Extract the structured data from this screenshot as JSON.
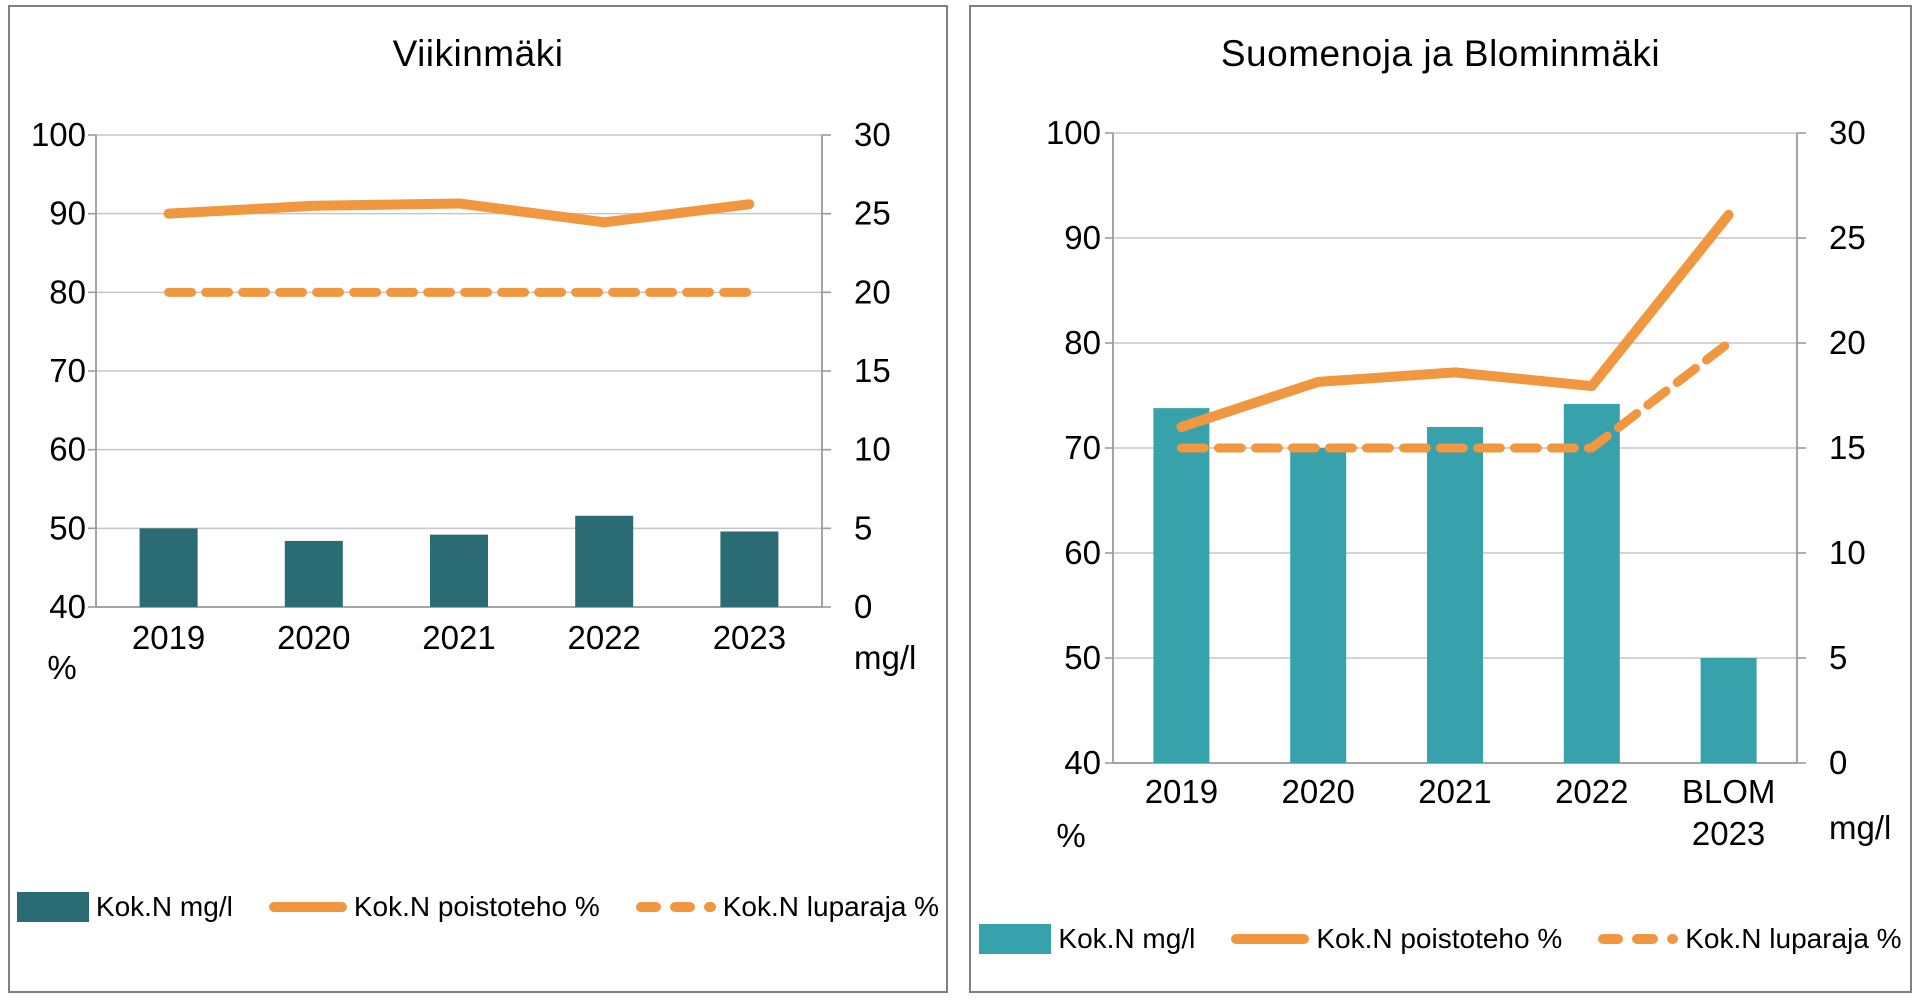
{
  "page": {
    "background": "#ffffff",
    "panel_border_color": "#7f7f7f"
  },
  "colors": {
    "orange": "#F0973F",
    "teal_dark": "#2A6B74",
    "teal_light": "#38A2AC",
    "gridline": "#C6C6C6",
    "axis_line": "#9B9B9B",
    "text": "#000000"
  },
  "chart_data": [
    {
      "type": "combo",
      "title": "Viikinmäki",
      "categories": [
        "2019",
        "2020",
        "2021",
        "2022",
        "2023"
      ],
      "left_axis": {
        "label": "%",
        "min": 40,
        "max": 100,
        "ticks": [
          100,
          90,
          80,
          70,
          60,
          50,
          40
        ]
      },
      "right_axis": {
        "label": "mg/l",
        "min": 0,
        "max": 30,
        "ticks": [
          30,
          25,
          20,
          15,
          10,
          5,
          0
        ]
      },
      "grid": true,
      "legend_position": "bottom",
      "series": [
        {
          "name": "Kok.N mg/l",
          "type": "bar",
          "axis": "right",
          "color": "#2A6B74",
          "values": [
            5.0,
            4.2,
            4.6,
            5.8,
            4.8
          ]
        },
        {
          "name": "Kok.N poistoteho %",
          "type": "line",
          "axis": "left",
          "color": "#F0973F",
          "values": [
            90,
            91,
            91.3,
            88.9,
            91.2
          ]
        },
        {
          "name": "Kok.N luparaja %",
          "type": "dashed_line",
          "axis": "left",
          "color": "#F0973F",
          "values": [
            80,
            80,
            80,
            80,
            80
          ]
        }
      ]
    },
    {
      "type": "combo",
      "title": "Suomenoja ja Blominmäki",
      "categories": [
        "2019",
        "2020",
        "2021",
        "2022",
        "BLOM\n2023"
      ],
      "left_axis": {
        "label": "%",
        "min": 40,
        "max": 100,
        "ticks": [
          100,
          90,
          80,
          70,
          60,
          50,
          40
        ]
      },
      "right_axis": {
        "label": "mg/l",
        "min": 0,
        "max": 30,
        "ticks": [
          30,
          25,
          20,
          15,
          10,
          5,
          0
        ]
      },
      "grid": true,
      "legend_position": "bottom",
      "series": [
        {
          "name": "Kok.N mg/l",
          "type": "bar",
          "axis": "right",
          "color": "#38A2AC",
          "values": [
            16.9,
            15.0,
            16.0,
            17.1,
            5.0
          ]
        },
        {
          "name": "Kok.N poistoteho %",
          "type": "line",
          "axis": "left",
          "color": "#F0973F",
          "values": [
            72,
            76.3,
            77.2,
            75.9,
            92.2
          ]
        },
        {
          "name": "Kok.N luparaja %",
          "type": "dashed_line",
          "axis": "left",
          "color": "#F0973F",
          "values": [
            70,
            70,
            70,
            70,
            80
          ]
        }
      ]
    }
  ]
}
